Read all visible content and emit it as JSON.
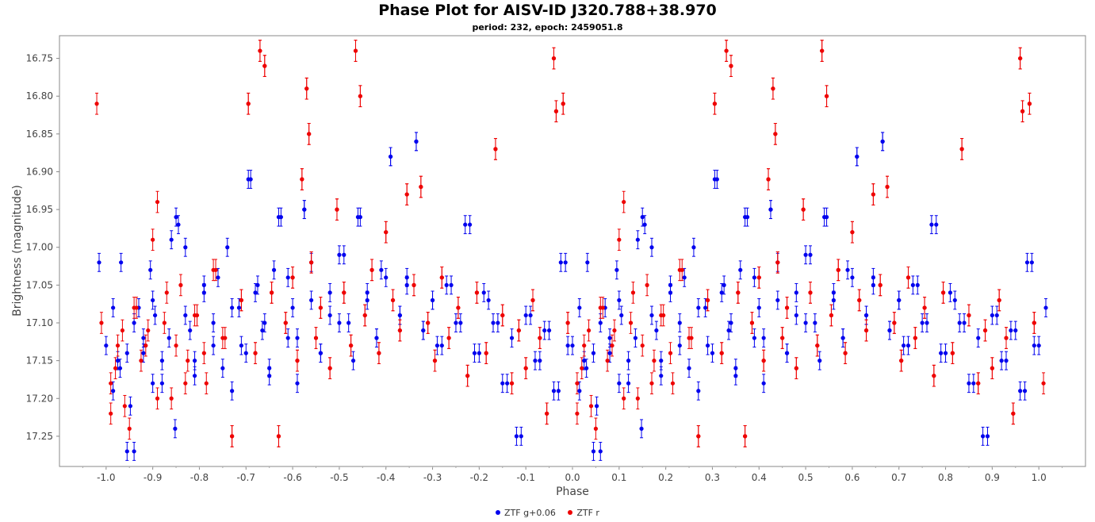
{
  "chart_data": {
    "type": "scatter",
    "title": "Phase Plot for AISV-ID J320.788+38.970",
    "subtitle": "period: 232, epoch: 2459051.8",
    "xlabel": "Phase",
    "ylabel": "Brightness (magnitude)",
    "xlim": [
      -1.1,
      1.1
    ],
    "ylim": [
      16.72,
      17.29
    ],
    "y_inverted": true,
    "x_ticks": [
      "-1.0",
      "-0.9",
      "-0.8",
      "-0.7",
      "-0.6",
      "-0.5",
      "-0.4",
      "-0.3",
      "-0.2",
      "-0.1",
      "0.0",
      "0.1",
      "0.2",
      "0.3",
      "0.4",
      "0.5",
      "0.6",
      "0.7",
      "0.8",
      "0.9",
      "1.0"
    ],
    "y_ticks": [
      "16.75",
      "16.80",
      "16.85",
      "16.90",
      "16.95",
      "17.00",
      "17.05",
      "17.10",
      "17.15",
      "17.20",
      "17.25"
    ],
    "grid": false,
    "legend_position": "bottom",
    "phase_period_repeat": 1.0,
    "series": [
      {
        "name": "ZTF g+0.06",
        "color": "#0000ee",
        "error": 0.012,
        "points": [
          [
            -0.985,
            17.19
          ],
          [
            -0.975,
            17.15
          ],
          [
            -0.968,
            17.02
          ],
          [
            -0.955,
            17.14
          ],
          [
            -0.948,
            17.21
          ],
          [
            -0.94,
            17.27
          ],
          [
            -0.93,
            17.08
          ],
          [
            -0.92,
            17.12
          ],
          [
            -0.905,
            17.03
          ],
          [
            -0.9,
            17.18
          ],
          [
            -0.895,
            17.09
          ],
          [
            -0.88,
            17.15
          ],
          [
            -0.86,
            16.99
          ],
          [
            -0.852,
            17.24
          ],
          [
            -0.845,
            16.97
          ],
          [
            -0.83,
            17.0
          ],
          [
            -0.82,
            17.11
          ],
          [
            -0.81,
            17.17
          ],
          [
            -0.79,
            17.06
          ],
          [
            -0.77,
            17.13
          ],
          [
            -0.76,
            17.04
          ],
          [
            -0.74,
            17.0
          ],
          [
            -0.73,
            17.19
          ],
          [
            -0.715,
            17.08
          ],
          [
            -0.7,
            17.14
          ],
          [
            -0.69,
            16.91
          ],
          [
            -0.675,
            17.05
          ],
          [
            -0.66,
            17.1
          ],
          [
            -0.65,
            17.16
          ],
          [
            -0.64,
            17.03
          ],
          [
            -0.625,
            16.96
          ],
          [
            -0.61,
            17.12
          ],
          [
            -0.6,
            17.08
          ],
          [
            -0.59,
            17.18
          ],
          [
            -0.575,
            16.95
          ],
          [
            -0.56,
            17.02
          ],
          [
            -0.54,
            17.14
          ],
          [
            -0.52,
            17.06
          ],
          [
            -0.5,
            17.1
          ],
          [
            -0.49,
            17.01
          ],
          [
            -0.47,
            17.15
          ],
          [
            -0.455,
            16.96
          ],
          [
            -0.44,
            17.07
          ],
          [
            -0.42,
            17.12
          ],
          [
            -0.41,
            17.03
          ],
          [
            -0.39,
            16.88
          ],
          [
            -0.37,
            17.09
          ],
          [
            -0.355,
            17.04
          ],
          [
            -0.335,
            16.86
          ],
          [
            -0.32,
            17.11
          ],
          [
            -0.3,
            17.07
          ],
          [
            -0.29,
            17.13
          ],
          [
            -0.27,
            17.05
          ],
          [
            -0.25,
            17.1
          ],
          [
            -0.23,
            16.97
          ],
          [
            -0.21,
            17.14
          ],
          [
            -0.19,
            17.06
          ],
          [
            -0.17,
            17.1
          ],
          [
            -0.15,
            17.18
          ],
          [
            -0.13,
            17.12
          ],
          [
            -0.11,
            17.25
          ],
          [
            -0.09,
            17.09
          ],
          [
            -0.07,
            17.15
          ],
          [
            -0.05,
            17.11
          ],
          [
            -0.03,
            17.19
          ],
          [
            -0.015,
            17.02
          ],
          [
            0.0,
            17.13
          ],
          [
            0.015,
            17.08
          ],
          [
            0.03,
            17.16
          ],
          [
            0.045,
            17.27
          ],
          [
            0.06,
            17.1
          ],
          [
            0.08,
            17.14
          ],
          [
            0.1,
            17.07
          ],
          [
            0.12,
            17.18
          ],
          [
            0.135,
            17.12
          ],
          [
            0.15,
            16.96
          ],
          [
            0.17,
            17.09
          ],
          [
            0.19,
            17.15
          ],
          [
            0.21,
            17.05
          ],
          [
            0.23,
            17.1
          ],
          [
            0.25,
            17.16
          ],
          [
            0.27,
            17.08
          ],
          [
            0.29,
            17.13
          ],
          [
            0.305,
            16.91
          ],
          [
            0.32,
            17.06
          ],
          [
            0.335,
            17.11
          ],
          [
            0.35,
            17.17
          ],
          [
            0.37,
            16.96
          ],
          [
            0.39,
            17.04
          ],
          [
            0.41,
            17.12
          ],
          [
            0.425,
            16.95
          ],
          [
            0.44,
            17.07
          ],
          [
            0.46,
            17.14
          ],
          [
            0.48,
            17.09
          ],
          [
            0.5,
            17.01
          ],
          [
            0.52,
            17.1
          ],
          [
            0.54,
            16.96
          ],
          [
            0.56,
            17.06
          ],
          [
            0.58,
            17.12
          ],
          [
            0.6,
            17.04
          ],
          [
            0.61,
            16.88
          ],
          [
            0.63,
            17.09
          ],
          [
            0.645,
            17.05
          ],
          [
            0.665,
            16.86
          ],
          [
            0.68,
            17.11
          ],
          [
            0.7,
            17.07
          ],
          [
            0.72,
            17.13
          ],
          [
            0.74,
            17.05
          ],
          [
            0.76,
            17.1
          ],
          [
            0.78,
            16.97
          ],
          [
            0.8,
            17.14
          ],
          [
            0.82,
            17.07
          ],
          [
            0.84,
            17.1
          ],
          [
            0.86,
            17.18
          ],
          [
            0.88,
            17.25
          ],
          [
            0.9,
            17.09
          ],
          [
            0.92,
            17.15
          ],
          [
            0.94,
            17.11
          ],
          [
            0.96,
            17.19
          ],
          [
            0.975,
            17.02
          ],
          [
            0.99,
            17.13
          ]
        ]
      },
      {
        "name": "ZTF r",
        "color": "#ee0000",
        "error": 0.014,
        "points": [
          [
            -0.99,
            17.22
          ],
          [
            -0.98,
            17.16
          ],
          [
            -0.965,
            17.11
          ],
          [
            -0.95,
            17.24
          ],
          [
            -0.935,
            17.08
          ],
          [
            -0.915,
            17.13
          ],
          [
            -0.9,
            16.99
          ],
          [
            -0.89,
            16.94
          ],
          [
            -0.875,
            17.1
          ],
          [
            -0.86,
            17.2
          ],
          [
            -0.84,
            17.05
          ],
          [
            -0.825,
            17.15
          ],
          [
            -0.805,
            17.09
          ],
          [
            -0.785,
            17.18
          ],
          [
            -0.765,
            17.03
          ],
          [
            -0.745,
            17.12
          ],
          [
            -0.73,
            17.25
          ],
          [
            -0.71,
            17.07
          ],
          [
            -0.695,
            16.81
          ],
          [
            -0.68,
            17.14
          ],
          [
            -0.67,
            16.74
          ],
          [
            -0.66,
            16.76
          ],
          [
            -0.645,
            17.06
          ],
          [
            -0.63,
            17.25
          ],
          [
            -0.615,
            17.1
          ],
          [
            -0.6,
            17.04
          ],
          [
            -0.59,
            17.15
          ],
          [
            -0.58,
            16.91
          ],
          [
            -0.57,
            16.79
          ],
          [
            -0.565,
            16.85
          ],
          [
            -0.56,
            17.02
          ],
          [
            -0.55,
            17.12
          ],
          [
            -0.54,
            17.08
          ],
          [
            -0.52,
            17.16
          ],
          [
            -0.505,
            16.95
          ],
          [
            -0.49,
            17.06
          ],
          [
            -0.475,
            17.13
          ],
          [
            -0.465,
            16.74
          ],
          [
            -0.455,
            16.8
          ],
          [
            -0.445,
            17.09
          ],
          [
            -0.43,
            17.03
          ],
          [
            -0.415,
            17.14
          ],
          [
            -0.4,
            16.98
          ],
          [
            -0.385,
            17.07
          ],
          [
            -0.37,
            17.11
          ],
          [
            -0.355,
            16.93
          ],
          [
            -0.34,
            17.05
          ],
          [
            -0.325,
            16.92
          ],
          [
            -0.31,
            17.1
          ],
          [
            -0.295,
            17.15
          ],
          [
            -0.28,
            17.04
          ],
          [
            -0.265,
            17.12
          ],
          [
            -0.245,
            17.08
          ],
          [
            -0.225,
            17.17
          ],
          [
            -0.205,
            17.06
          ],
          [
            -0.185,
            17.14
          ],
          [
            -0.165,
            16.87
          ],
          [
            -0.15,
            17.09
          ],
          [
            -0.13,
            17.18
          ],
          [
            -0.115,
            17.11
          ],
          [
            -0.1,
            17.16
          ],
          [
            -0.085,
            17.07
          ],
          [
            -0.07,
            17.12
          ],
          [
            -0.055,
            17.22
          ],
          [
            -0.04,
            16.75
          ],
          [
            -0.035,
            16.82
          ],
          [
            -0.02,
            16.81
          ],
          [
            -0.01,
            17.1
          ],
          [
            0.01,
            17.18
          ],
          [
            0.025,
            17.13
          ],
          [
            0.04,
            17.21
          ],
          [
            0.06,
            17.08
          ],
          [
            0.075,
            17.15
          ],
          [
            0.09,
            17.11
          ],
          [
            0.11,
            17.2
          ],
          [
            0.13,
            17.06
          ],
          [
            0.15,
            17.13
          ],
          [
            0.17,
            17.18
          ],
          [
            0.19,
            17.09
          ],
          [
            0.21,
            17.14
          ],
          [
            0.23,
            17.03
          ],
          [
            0.25,
            17.12
          ],
          [
            0.27,
            17.25
          ],
          [
            0.29,
            17.07
          ],
          [
            0.305,
            16.81
          ],
          [
            0.32,
            17.14
          ],
          [
            0.33,
            16.74
          ],
          [
            0.34,
            16.76
          ],
          [
            0.355,
            17.06
          ],
          [
            0.37,
            17.25
          ],
          [
            0.385,
            17.1
          ],
          [
            0.4,
            17.04
          ],
          [
            0.41,
            17.15
          ],
          [
            0.42,
            16.91
          ],
          [
            0.43,
            16.79
          ],
          [
            0.435,
            16.85
          ],
          [
            0.44,
            17.02
          ],
          [
            0.45,
            17.12
          ],
          [
            0.46,
            17.08
          ],
          [
            0.48,
            17.16
          ],
          [
            0.495,
            16.95
          ],
          [
            0.51,
            17.06
          ],
          [
            0.525,
            17.13
          ],
          [
            0.535,
            16.74
          ],
          [
            0.545,
            16.8
          ],
          [
            0.555,
            17.09
          ],
          [
            0.57,
            17.03
          ],
          [
            0.585,
            17.14
          ],
          [
            0.6,
            16.98
          ],
          [
            0.615,
            17.07
          ],
          [
            0.63,
            17.11
          ],
          [
            0.645,
            16.93
          ],
          [
            0.66,
            17.05
          ],
          [
            0.675,
            16.92
          ],
          [
            0.69,
            17.1
          ],
          [
            0.705,
            17.15
          ],
          [
            0.72,
            17.04
          ],
          [
            0.735,
            17.12
          ],
          [
            0.755,
            17.08
          ],
          [
            0.775,
            17.17
          ],
          [
            0.795,
            17.06
          ],
          [
            0.815,
            17.14
          ],
          [
            0.835,
            16.87
          ],
          [
            0.85,
            17.09
          ],
          [
            0.87,
            17.18
          ],
          [
            0.885,
            17.11
          ],
          [
            0.9,
            17.16
          ],
          [
            0.915,
            17.07
          ],
          [
            0.93,
            17.12
          ],
          [
            0.945,
            17.22
          ],
          [
            0.96,
            16.75
          ],
          [
            0.965,
            16.82
          ],
          [
            0.98,
            16.81
          ],
          [
            0.99,
            17.1
          ]
        ]
      }
    ]
  }
}
